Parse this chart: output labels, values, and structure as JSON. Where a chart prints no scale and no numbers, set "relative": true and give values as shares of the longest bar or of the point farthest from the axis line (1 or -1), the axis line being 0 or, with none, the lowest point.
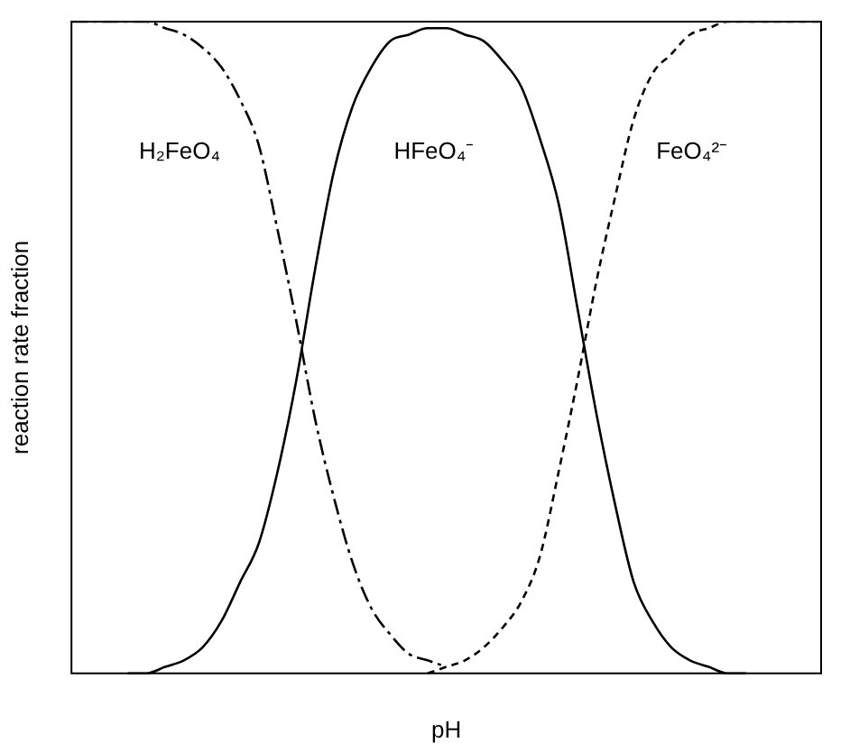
{
  "chart_data": {
    "type": "line",
    "relative": true,
    "xlabel": "pH",
    "ylabel": "reaction rate fraction",
    "legend": false,
    "grid": false,
    "marker": "none",
    "categories": [
      null,
      null,
      null,
      null,
      null,
      null,
      null,
      null,
      null,
      null,
      null,
      null,
      null,
      null,
      null,
      null,
      null,
      null,
      null,
      null,
      null,
      null,
      null,
      null,
      null,
      null,
      null,
      null,
      null,
      null,
      null,
      null,
      null,
      null,
      null,
      null,
      null,
      null,
      null,
      null,
      null
    ],
    "series": [
      {
        "name": "H₂FeO₄",
        "color": "#000000",
        "line_style": "dashed",
        "values": [
          1,
          1,
          1,
          1,
          1,
          0.99,
          0.98,
          0.96,
          0.93,
          0.88,
          0.81,
          0.68,
          0.54,
          0.39,
          0.27,
          0.17,
          0.1,
          0.06,
          0.03,
          0.02,
          0.01,
          null,
          null,
          null,
          null,
          null,
          null,
          null,
          null,
          null,
          null,
          null,
          null,
          null,
          null,
          null,
          null,
          null,
          null,
          null,
          null
        ]
      },
      {
        "name": "HFeO₄⁻",
        "color": "#000000",
        "line_style": "solid",
        "values": [
          null,
          null,
          null,
          0,
          0,
          0.01,
          0.02,
          0.04,
          0.08,
          0.14,
          0.2,
          0.31,
          0.45,
          0.62,
          0.77,
          0.87,
          0.93,
          0.97,
          0.98,
          0.99,
          0.99,
          0.98,
          0.97,
          0.94,
          0.9,
          0.82,
          0.72,
          0.56,
          0.4,
          0.26,
          0.14,
          0.08,
          0.04,
          0.02,
          0.01,
          0,
          0,
          null,
          null,
          null,
          null
        ]
      },
      {
        "name": "FeO₄²⁻",
        "color": "#000000",
        "line_style": "dotted",
        "values": [
          null,
          null,
          null,
          null,
          null,
          null,
          null,
          null,
          null,
          null,
          null,
          null,
          null,
          null,
          null,
          null,
          null,
          null,
          null,
          0,
          0.01,
          0.02,
          0.04,
          0.07,
          0.11,
          0.18,
          0.31,
          0.45,
          0.6,
          0.73,
          0.85,
          0.92,
          0.95,
          0.98,
          0.99,
          1,
          1,
          1,
          1,
          1,
          1
        ]
      }
    ]
  }
}
